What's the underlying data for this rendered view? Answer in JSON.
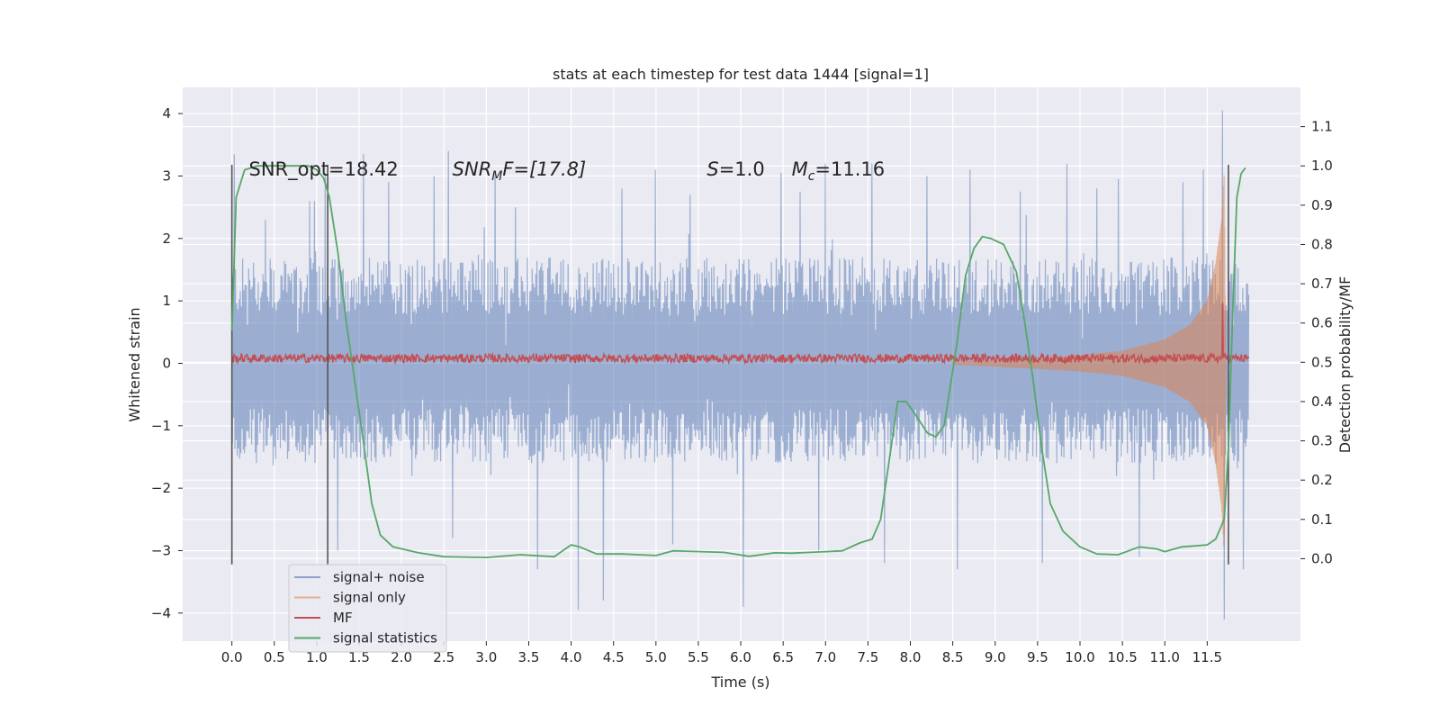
{
  "chart_data": {
    "type": "line",
    "title": "stats at each timestep for test data 1444 [signal=1]",
    "xlabel": "Time (s)",
    "ylabel": "Whitened strain",
    "y2label": "Detection probability/MF",
    "xlim": [
      -0.58,
      12.6
    ],
    "ylim": [
      -4.45,
      4.42
    ],
    "y2lim": [
      -0.21,
      1.2
    ],
    "xticks": [
      0.0,
      0.5,
      1.0,
      1.5,
      2.0,
      2.5,
      3.0,
      3.5,
      4.0,
      4.5,
      5.0,
      5.5,
      6.0,
      6.5,
      7.0,
      7.5,
      8.0,
      8.5,
      9.0,
      9.5,
      10.0,
      10.5,
      11.0,
      11.5
    ],
    "yticks": [
      -4,
      -3,
      -2,
      -1,
      0,
      1,
      2,
      3,
      4
    ],
    "y2ticks": [
      0.0,
      0.1,
      0.2,
      0.3,
      0.4,
      0.5,
      0.6,
      0.7,
      0.8,
      0.9,
      1.0,
      1.1
    ],
    "grid": true,
    "legend_position": "lower-left",
    "annotations": [
      {
        "type": "text",
        "text": "SNR_opt=18.42",
        "x": 0.2,
        "y": 3.15
      },
      {
        "type": "math",
        "base": "SNR",
        "sub": "M",
        "rest": "F=[17.8]",
        "x": 2.6,
        "y": 3.15
      },
      {
        "type": "math",
        "base": "S",
        "sub": "",
        "rest": "=1.0",
        "x": 5.6,
        "y": 3.15
      },
      {
        "type": "math",
        "base": "M",
        "sub": "c",
        "rest": "=11.16",
        "x": 6.6,
        "y": 3.15
      }
    ],
    "vertical_lines": [
      0.0,
      1.13,
      11.75
    ],
    "series": [
      {
        "name": "signal+ noise",
        "color": "#4c72b0",
        "axis": "left",
        "t_start": 0.0,
        "t_end": 11.99,
        "typical_envelope": [
          -1.6,
          1.7
        ],
        "peaks": [
          {
            "t": 0.03,
            "v": 3.35
          },
          {
            "t": 0.4,
            "v": 2.3
          },
          {
            "t": 0.92,
            "v": 2.6
          },
          {
            "t": 0.98,
            "v": 2.6
          },
          {
            "t": 1.1,
            "v": 3.05
          },
          {
            "t": 1.25,
            "v": -3.0
          },
          {
            "t": 1.55,
            "v": 3.35
          },
          {
            "t": 1.85,
            "v": 2.9
          },
          {
            "t": 2.38,
            "v": 3.0
          },
          {
            "t": 2.55,
            "v": 3.4
          },
          {
            "t": 2.6,
            "v": -2.8
          },
          {
            "t": 3.1,
            "v": 3.05
          },
          {
            "t": 3.35,
            "v": 2.5
          },
          {
            "t": 3.6,
            "v": -3.3
          },
          {
            "t": 4.08,
            "v": -3.95
          },
          {
            "t": 4.38,
            "v": -3.8
          },
          {
            "t": 4.6,
            "v": 2.8
          },
          {
            "t": 5.0,
            "v": 3.1
          },
          {
            "t": 5.2,
            "v": -2.9
          },
          {
            "t": 5.4,
            "v": 2.7
          },
          {
            "t": 6.03,
            "v": -3.9
          },
          {
            "t": 6.48,
            "v": 3.05
          },
          {
            "t": 6.7,
            "v": 2.75
          },
          {
            "t": 6.92,
            "v": -3.0
          },
          {
            "t": 7.0,
            "v": 3.2
          },
          {
            "t": 7.55,
            "v": 3.2
          },
          {
            "t": 7.7,
            "v": -3.2
          },
          {
            "t": 8.2,
            "v": 3.0
          },
          {
            "t": 8.55,
            "v": -3.3
          },
          {
            "t": 8.7,
            "v": 3.1
          },
          {
            "t": 9.3,
            "v": 2.75
          },
          {
            "t": 9.55,
            "v": -3.2
          },
          {
            "t": 9.85,
            "v": 3.2
          },
          {
            "t": 10.2,
            "v": 2.8
          },
          {
            "t": 10.45,
            "v": 2.95
          },
          {
            "t": 10.7,
            "v": -3.1
          },
          {
            "t": 11.22,
            "v": 2.9
          },
          {
            "t": 11.45,
            "v": 3.1
          },
          {
            "t": 11.68,
            "v": 4.05
          },
          {
            "t": 11.7,
            "v": -4.1
          },
          {
            "t": 11.92,
            "v": -3.3
          }
        ]
      },
      {
        "name": "signal only",
        "color": "#dd8452",
        "axis": "left",
        "envelope": [
          [
            0.0,
            0.01
          ],
          [
            8.5,
            0.02
          ],
          [
            9.5,
            0.09
          ],
          [
            10.0,
            0.13
          ],
          [
            10.5,
            0.2
          ],
          [
            11.0,
            0.38
          ],
          [
            11.3,
            0.62
          ],
          [
            11.5,
            1.0
          ],
          [
            11.6,
            1.6
          ],
          [
            11.67,
            2.3
          ],
          [
            11.7,
            3.05
          ],
          [
            11.72,
            0.0
          ]
        ]
      },
      {
        "name": "MF",
        "color": "#c44e52",
        "axis": "left",
        "mean": 0.08,
        "noise_amplitude": 0.07,
        "spike": {
          "t": 11.68,
          "v": 0.98
        }
      },
      {
        "name": "signal statistics",
        "color": "#55a868",
        "axis": "right",
        "points": [
          [
            0.0,
            0.58
          ],
          [
            0.05,
            0.92
          ],
          [
            0.15,
            0.99
          ],
          [
            0.3,
            1.0
          ],
          [
            0.6,
            1.0
          ],
          [
            0.9,
            1.0
          ],
          [
            1.0,
            0.99
          ],
          [
            1.08,
            0.97
          ],
          [
            1.15,
            0.92
          ],
          [
            1.25,
            0.78
          ],
          [
            1.35,
            0.6
          ],
          [
            1.45,
            0.45
          ],
          [
            1.55,
            0.3
          ],
          [
            1.65,
            0.14
          ],
          [
            1.75,
            0.06
          ],
          [
            1.9,
            0.03
          ],
          [
            2.2,
            0.015
          ],
          [
            2.5,
            0.005
          ],
          [
            3.0,
            0.003
          ],
          [
            3.4,
            0.01
          ],
          [
            3.8,
            0.005
          ],
          [
            4.0,
            0.035
          ],
          [
            4.1,
            0.03
          ],
          [
            4.3,
            0.012
          ],
          [
            4.6,
            0.012
          ],
          [
            5.0,
            0.008
          ],
          [
            5.2,
            0.02
          ],
          [
            5.8,
            0.016
          ],
          [
            6.1,
            0.006
          ],
          [
            6.4,
            0.015
          ],
          [
            6.6,
            0.014
          ],
          [
            7.0,
            0.018
          ],
          [
            7.2,
            0.02
          ],
          [
            7.4,
            0.04
          ],
          [
            7.55,
            0.05
          ],
          [
            7.65,
            0.1
          ],
          [
            7.75,
            0.25
          ],
          [
            7.85,
            0.4
          ],
          [
            7.95,
            0.4
          ],
          [
            8.05,
            0.37
          ],
          [
            8.2,
            0.32
          ],
          [
            8.3,
            0.31
          ],
          [
            8.4,
            0.34
          ],
          [
            8.55,
            0.55
          ],
          [
            8.65,
            0.72
          ],
          [
            8.75,
            0.79
          ],
          [
            8.85,
            0.82
          ],
          [
            8.95,
            0.815
          ],
          [
            9.1,
            0.8
          ],
          [
            9.25,
            0.73
          ],
          [
            9.35,
            0.6
          ],
          [
            9.45,
            0.45
          ],
          [
            9.55,
            0.28
          ],
          [
            9.65,
            0.14
          ],
          [
            9.8,
            0.07
          ],
          [
            10.0,
            0.03
          ],
          [
            10.2,
            0.012
          ],
          [
            10.45,
            0.01
          ],
          [
            10.7,
            0.03
          ],
          [
            10.9,
            0.025
          ],
          [
            11.0,
            0.018
          ],
          [
            11.2,
            0.03
          ],
          [
            11.5,
            0.035
          ],
          [
            11.6,
            0.05
          ],
          [
            11.7,
            0.1
          ],
          [
            11.75,
            0.28
          ],
          [
            11.8,
            0.62
          ],
          [
            11.85,
            0.92
          ],
          [
            11.9,
            0.98
          ],
          [
            11.95,
            0.995
          ]
        ]
      }
    ]
  }
}
